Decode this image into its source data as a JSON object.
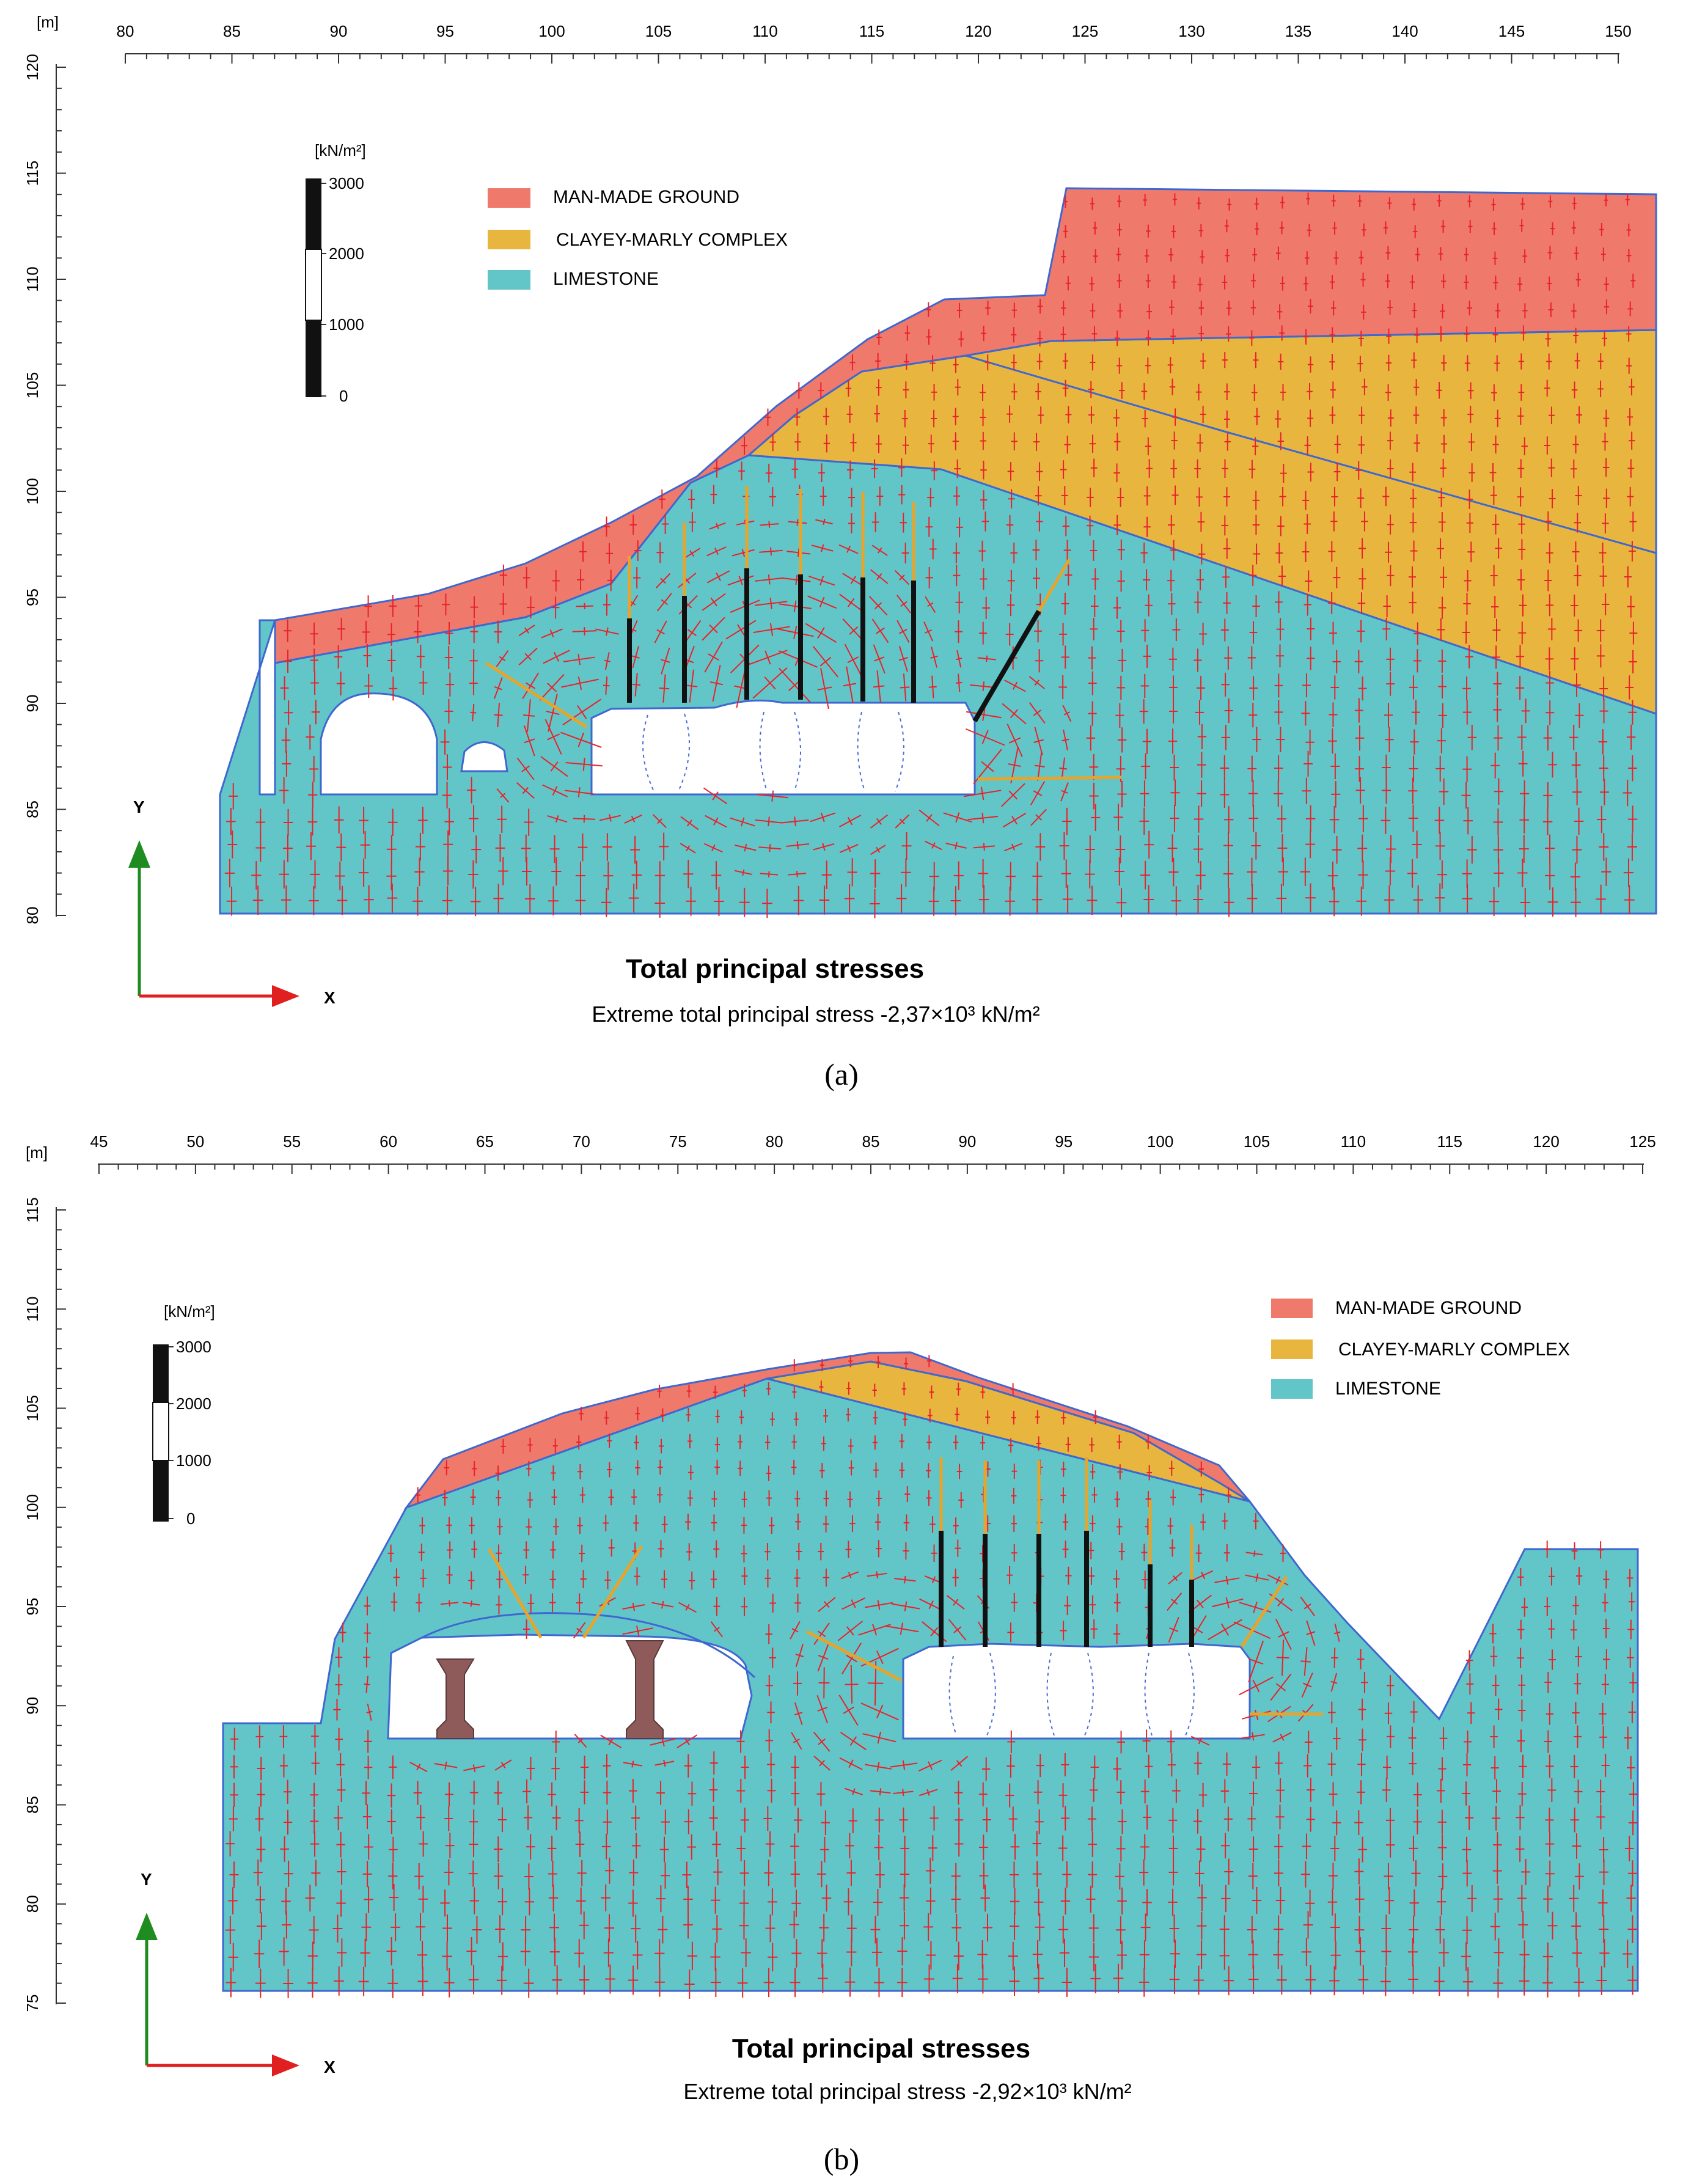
{
  "colors": {
    "man_made": "#EF7A6C",
    "clayey": "#E8B63E",
    "limestone": "#62C6C8",
    "boundary": "#3E67D0",
    "stress": "#E8222A",
    "anchor_free": "#E8A42A",
    "anchor_fixed": "#111111",
    "axis_y": "#1E8C1E",
    "axis_x": "#E02020",
    "pillar": "#8E5A5A"
  },
  "panels": [
    {
      "id": "a",
      "sublabel": "(a)",
      "unit": "[m]",
      "x_ticks": [
        "80",
        "85",
        "90",
        "95",
        "100",
        "105",
        "110",
        "115",
        "120",
        "125",
        "130",
        "135",
        "140",
        "145",
        "150"
      ],
      "y_ticks": [
        "120",
        "115",
        "110",
        "105",
        "100",
        "95",
        "90",
        "85",
        "80"
      ],
      "scale_unit": "[kN/m²]",
      "scale_ticks": [
        "3000",
        "2000",
        "1000",
        "0"
      ],
      "legend": [
        "MAN-MADE GROUND",
        "CLAYEY-MARLY COMPLEX",
        "LIMESTONE"
      ],
      "title": "Total principal stresses",
      "subtitle": "Extreme total principal stress -2,37×10³ kN/m²",
      "axis_y_label": "Y",
      "axis_x_label": "X"
    },
    {
      "id": "b",
      "sublabel": "(b)",
      "unit": "[m]",
      "x_ticks": [
        "45",
        "50",
        "55",
        "60",
        "65",
        "70",
        "75",
        "80",
        "85",
        "90",
        "95",
        "100",
        "105",
        "110",
        "115",
        "120",
        "125"
      ],
      "y_ticks": [
        "115",
        "110",
        "105",
        "100",
        "95",
        "90",
        "85",
        "80",
        "75"
      ],
      "scale_unit": "[kN/m²]",
      "scale_ticks": [
        "3000",
        "2000",
        "1000",
        "0"
      ],
      "legend": [
        "MAN-MADE GROUND",
        "CLAYEY-MARLY COMPLEX",
        "LIMESTONE"
      ],
      "title": "Total principal stresses",
      "subtitle": "Extreme total principal stress -2,92×10³ kN/m²",
      "axis_y_label": "Y",
      "axis_x_label": "X"
    }
  ]
}
